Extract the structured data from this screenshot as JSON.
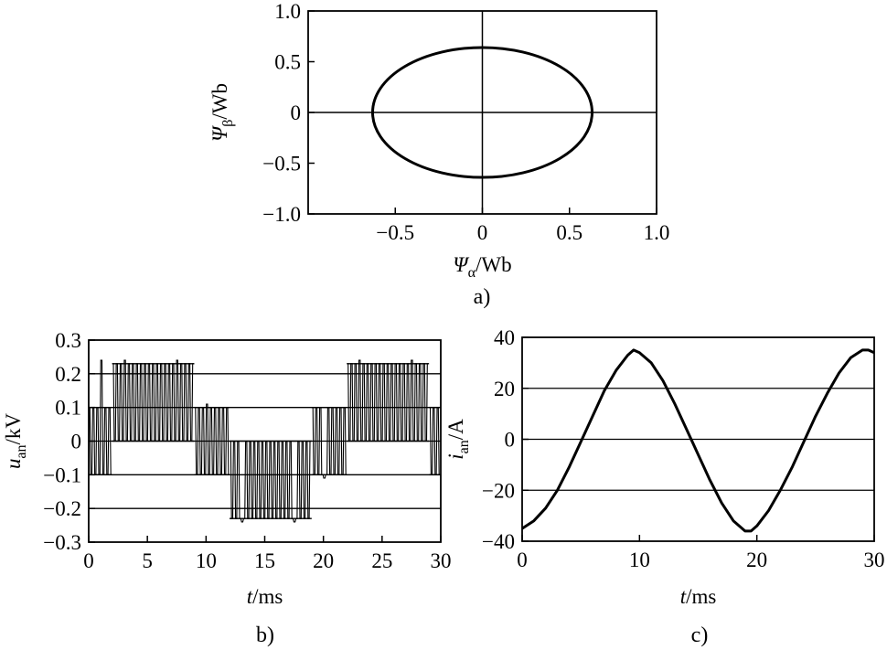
{
  "chart_data": [
    {
      "id": "a",
      "type": "line",
      "caption": "a)",
      "xlabel": {
        "symbol": "Ψ",
        "sub": "α",
        "unit": "/Wb"
      },
      "ylabel": {
        "symbol": "Ψ",
        "sub": "β",
        "unit": "/Wb"
      },
      "xlim": [
        -1.0,
        1.0
      ],
      "ylim": [
        -1.0,
        1.0
      ],
      "xticks": [
        {
          "v": -0.5,
          "label": "−0.5"
        },
        {
          "v": 0,
          "label": "0"
        },
        {
          "v": 0.5,
          "label": "0.5"
        },
        {
          "v": 1.0,
          "label": "1.0"
        }
      ],
      "yticks": [
        {
          "v": -1.0,
          "label": "−1.0"
        },
        {
          "v": -0.5,
          "label": "−0.5"
        },
        {
          "v": 0,
          "label": "0"
        },
        {
          "v": 0.5,
          "label": "0.5"
        },
        {
          "v": 1.0,
          "label": "1.0"
        }
      ],
      "zero_lines": true,
      "series": [
        {
          "shape": "ellipse",
          "x_radius": 0.63,
          "y_radius": 0.64,
          "center": [
            0,
            0
          ]
        }
      ]
    },
    {
      "id": "b",
      "type": "line",
      "caption": "b)",
      "xlabel": {
        "symbol": "t",
        "unit": "/ms"
      },
      "ylabel": {
        "symbol": "u",
        "sub": "an",
        "unit": "/kV"
      },
      "xlim": [
        0,
        30
      ],
      "ylim": [
        -0.3,
        0.3
      ],
      "xticks": [
        {
          "v": 0,
          "label": "0"
        },
        {
          "v": 5,
          "label": "5"
        },
        {
          "v": 10,
          "label": "10"
        },
        {
          "v": 15,
          "label": "15"
        },
        {
          "v": 20,
          "label": "20"
        },
        {
          "v": 25,
          "label": "25"
        },
        {
          "v": 30,
          "label": "30"
        }
      ],
      "yticks": [
        {
          "v": -0.3,
          "label": "−0.3"
        },
        {
          "v": -0.2,
          "label": "−0.2"
        },
        {
          "v": -0.1,
          "label": "−0.1"
        },
        {
          "v": 0,
          "label": "0"
        },
        {
          "v": 0.1,
          "label": "0.1"
        },
        {
          "v": 0.2,
          "label": "0.2"
        },
        {
          "v": 0.3,
          "label": "0.3"
        }
      ],
      "grid_y": [
        0.2,
        0.1,
        0,
        -0.1,
        -0.2
      ],
      "series": [
        {
          "style": "pwm",
          "segments": [
            {
              "t0": 0.0,
              "t1": 2.0,
              "lo": -0.1,
              "hi": 0.1,
              "spikes": 0.24
            },
            {
              "t0": 2.0,
              "t1": 9.0,
              "lo": 0.0,
              "hi": 0.23,
              "spikes": 0.24
            },
            {
              "t0": 9.0,
              "t1": 12.0,
              "lo": -0.1,
              "hi": 0.1,
              "spikes": 0.11
            },
            {
              "t0": 12.0,
              "t1": 19.0,
              "lo": -0.23,
              "hi": 0.0,
              "spikes": -0.24
            },
            {
              "t0": 19.0,
              "t1": 22.0,
              "lo": -0.1,
              "hi": 0.1,
              "spikes": -0.11
            },
            {
              "t0": 22.0,
              "t1": 29.0,
              "lo": 0.0,
              "hi": 0.23,
              "spikes": 0.24
            },
            {
              "t0": 29.0,
              "t1": 30.0,
              "lo": -0.1,
              "hi": 0.1,
              "spikes": 0.11
            }
          ]
        }
      ]
    },
    {
      "id": "c",
      "type": "line",
      "caption": "c)",
      "xlabel": {
        "symbol": "t",
        "unit": "/ms"
      },
      "ylabel": {
        "symbol": "i",
        "sub": "an",
        "unit": "/A"
      },
      "xlim": [
        0,
        30
      ],
      "ylim": [
        -40,
        40
      ],
      "xticks": [
        {
          "v": 0,
          "label": "0"
        },
        {
          "v": 10,
          "label": "10"
        },
        {
          "v": 20,
          "label": "20"
        },
        {
          "v": 30,
          "label": "30"
        }
      ],
      "yticks": [
        {
          "v": -40,
          "label": "−40"
        },
        {
          "v": -20,
          "label": "−20"
        },
        {
          "v": 0,
          "label": "0"
        },
        {
          "v": 20,
          "label": "20"
        },
        {
          "v": 40,
          "label": "40"
        }
      ],
      "grid_y": [
        20,
        0,
        -20
      ],
      "series": [
        {
          "x": [
            0,
            1,
            2,
            3,
            4,
            5,
            6,
            7,
            8,
            9,
            9.5,
            10,
            11,
            12,
            13,
            14,
            15,
            16,
            17,
            18,
            19,
            19.5,
            20,
            21,
            22,
            23,
            24,
            25,
            26,
            27,
            28,
            29,
            29.5,
            30
          ],
          "y": [
            -35,
            -32,
            -27,
            -20,
            -11,
            -1,
            9,
            19,
            27,
            33,
            35,
            34,
            30,
            23,
            14,
            4,
            -6,
            -16,
            -25,
            -32,
            -36,
            -36,
            -34,
            -28,
            -20,
            -11,
            -1,
            9,
            18,
            26,
            32,
            35,
            35,
            34
          ]
        }
      ]
    }
  ]
}
